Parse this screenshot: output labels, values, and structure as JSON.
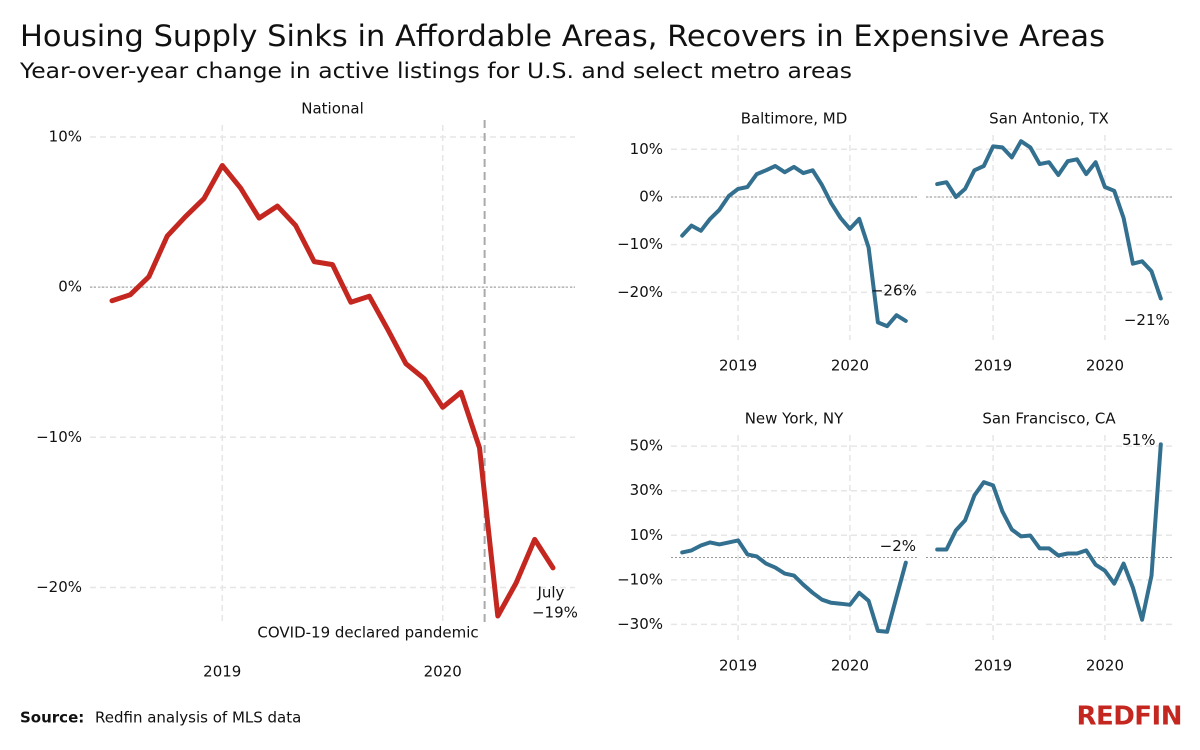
{
  "header": {
    "title": "Housing Supply Sinks in Affordable Areas, Recovers in Expensive Areas",
    "subtitle": "Year-over-year change in active listings for U.S. and select metro areas"
  },
  "footer": {
    "source_label": "Source:",
    "source": "Redfin analysis of MLS data",
    "logo": "REDFIN"
  },
  "chart_data": [
    {
      "type": "line",
      "title": "National",
      "color": "#c4271f",
      "x": [
        2018.5,
        2018.583,
        2018.667,
        2018.75,
        2018.833,
        2018.917,
        2019,
        2019.083,
        2019.167,
        2019.25,
        2019.333,
        2019.417,
        2019.5,
        2019.583,
        2019.667,
        2019.75,
        2019.833,
        2019.917,
        2020,
        2020.083,
        2020.167,
        2020.25,
        2020.333,
        2020.417,
        2020.5
      ],
      "values": [
        -0.9,
        -0.5,
        0.7,
        3.4,
        4.7,
        5.9,
        8.1,
        6.6,
        4.6,
        5.4,
        4.1,
        1.7,
        1.5,
        -1.0,
        -0.6,
        -2.8,
        -5.1,
        -6.1,
        -8.0,
        -7.0,
        -10.7,
        -21.9,
        -19.7,
        -16.8,
        -18.7
      ],
      "value_labels": [
        null,
        null,
        null,
        null,
        null,
        null,
        null,
        null,
        null,
        null,
        null,
        null,
        null,
        null,
        null,
        null,
        null,
        null,
        null,
        null,
        null,
        null,
        null,
        null,
        "−19%"
      ],
      "end_note": "July",
      "annotation": {
        "text": "COVID-19 declared pandemic",
        "x": 2020.19
      },
      "xlim": [
        2018.4,
        2020.6
      ],
      "xticks": [
        2019,
        2020
      ],
      "ylim": [
        -22.5,
        10.8
      ],
      "yticks": [
        {
          "value": 10,
          "label": "10%"
        },
        {
          "value": 0,
          "label": "0%"
        },
        {
          "value": -10,
          "label": "−10%"
        },
        {
          "value": -20,
          "label": "−20%"
        }
      ],
      "ytick_labels": true,
      "reference_line": 0,
      "grid": true
    },
    {
      "type": "line",
      "title": "Baltimore, MD",
      "color": "#33708f",
      "x": [
        2018.5,
        2018.583,
        2018.667,
        2018.75,
        2018.833,
        2018.917,
        2019,
        2019.083,
        2019.167,
        2019.25,
        2019.333,
        2019.417,
        2019.5,
        2019.583,
        2019.667,
        2019.75,
        2019.833,
        2019.917,
        2020,
        2020.083,
        2020.167,
        2020.25,
        2020.333,
        2020.417,
        2020.5
      ],
      "values": [
        -8.1,
        -6.0,
        -7.1,
        -4.6,
        -2.7,
        0.2,
        1.7,
        2.1,
        4.8,
        5.6,
        6.5,
        5.2,
        6.3,
        5.0,
        5.6,
        2.5,
        -1.3,
        -4.4,
        -6.7,
        -4.6,
        -10.6,
        -26.3,
        -27.1,
        -24.8,
        -26.0
      ],
      "value_labels": [
        null,
        null,
        null,
        null,
        null,
        null,
        null,
        null,
        null,
        null,
        null,
        null,
        null,
        null,
        null,
        null,
        null,
        null,
        null,
        null,
        null,
        null,
        null,
        null,
        "−26%"
      ],
      "xlim": [
        2018.4,
        2020.6
      ],
      "xticks": [
        2019,
        2020
      ],
      "ylim": [
        -30,
        13
      ],
      "yticks": [
        {
          "value": 10,
          "label": "10%"
        },
        {
          "value": 0,
          "label": "0%"
        },
        {
          "value": -10,
          "label": "−10%"
        },
        {
          "value": -20,
          "label": "−20%"
        }
      ],
      "ytick_labels": true,
      "reference_line": 0,
      "grid": true
    },
    {
      "type": "line",
      "title": "San Antonio, TX",
      "color": "#33708f",
      "x": [
        2018.5,
        2018.583,
        2018.667,
        2018.75,
        2018.833,
        2018.917,
        2019,
        2019.083,
        2019.167,
        2019.25,
        2019.333,
        2019.417,
        2019.5,
        2019.583,
        2019.667,
        2019.75,
        2019.833,
        2019.917,
        2020,
        2020.083,
        2020.167,
        2020.25,
        2020.333,
        2020.417,
        2020.5
      ],
      "values": [
        2.7,
        3.1,
        0,
        1.7,
        5.6,
        6.5,
        10.6,
        10.4,
        8.3,
        11.7,
        10.4,
        6.9,
        7.3,
        4.6,
        7.5,
        7.9,
        4.8,
        7.3,
        2.1,
        1.3,
        -4.4,
        -14.0,
        -13.5,
        -15.6,
        -21.3
      ],
      "value_labels": [
        null,
        null,
        null,
        null,
        null,
        null,
        null,
        null,
        null,
        null,
        null,
        null,
        null,
        null,
        null,
        null,
        null,
        null,
        null,
        null,
        null,
        null,
        null,
        null,
        "−21%"
      ],
      "xlim": [
        2018.4,
        2020.6
      ],
      "xticks": [
        2019,
        2020
      ],
      "ylim": [
        -30,
        13
      ],
      "yticks": [
        10,
        0,
        -10,
        -20
      ],
      "ytick_labels": false,
      "reference_line": 0,
      "grid": true
    },
    {
      "type": "line",
      "title": "New York, NY",
      "color": "#33708f",
      "x": [
        2018.5,
        2018.583,
        2018.667,
        2018.75,
        2018.833,
        2018.917,
        2019,
        2019.083,
        2019.167,
        2019.25,
        2019.333,
        2019.417,
        2019.5,
        2019.583,
        2019.667,
        2019.75,
        2019.833,
        2019.917,
        2020,
        2020.083,
        2020.167,
        2020.25,
        2020.333,
        2020.417,
        2020.5
      ],
      "values": [
        2.3,
        3.2,
        5.4,
        6.8,
        5.9,
        6.8,
        7.7,
        1.4,
        0.5,
        -2.7,
        -4.5,
        -7.2,
        -8.1,
        -12.2,
        -15.8,
        -18.9,
        -20.3,
        -20.7,
        -21.2,
        -15.8,
        -19.4,
        -32.9,
        -33.3,
        -17.6,
        -2.3
      ],
      "value_labels": [
        null,
        null,
        null,
        null,
        null,
        null,
        null,
        null,
        null,
        null,
        null,
        null,
        null,
        null,
        null,
        null,
        null,
        null,
        null,
        null,
        null,
        null,
        null,
        null,
        "−2%"
      ],
      "xlim": [
        2018.4,
        2020.6
      ],
      "xticks": [
        2019,
        2020
      ],
      "ylim": [
        -37,
        55
      ],
      "yticks": [
        {
          "value": 50,
          "label": "50%"
        },
        {
          "value": 30,
          "label": "30%"
        },
        {
          "value": 10,
          "label": "10%"
        },
        {
          "value": -10,
          "label": "−10%"
        },
        {
          "value": -30,
          "label": "−30%"
        }
      ],
      "ytick_labels": true,
      "reference_line": 0,
      "grid": true
    },
    {
      "type": "line",
      "title": "San Francisco, CA",
      "color": "#33708f",
      "x": [
        2018.5,
        2018.583,
        2018.667,
        2018.75,
        2018.833,
        2018.917,
        2019,
        2019.083,
        2019.167,
        2019.25,
        2019.333,
        2019.417,
        2019.5,
        2019.583,
        2019.667,
        2019.75,
        2019.833,
        2019.917,
        2020,
        2020.083,
        2020.167,
        2020.25,
        2020.333,
        2020.417,
        2020.5
      ],
      "values": [
        3.6,
        3.6,
        12.2,
        16.7,
        27.9,
        33.8,
        32.4,
        20.7,
        12.6,
        9.5,
        9.9,
        4.1,
        4.1,
        0.9,
        1.8,
        1.8,
        3.2,
        -3.2,
        -5.9,
        -11.7,
        -2.7,
        -13.5,
        -27.9,
        -8.1,
        50.8
      ],
      "value_labels": [
        null,
        null,
        null,
        null,
        null,
        null,
        null,
        null,
        null,
        null,
        null,
        null,
        null,
        null,
        null,
        null,
        null,
        null,
        null,
        null,
        null,
        null,
        null,
        null,
        "51%"
      ],
      "xlim": [
        2018.4,
        2020.6
      ],
      "xticks": [
        2019,
        2020
      ],
      "ylim": [
        -37,
        55
      ],
      "yticks": [
        50,
        30,
        10,
        -10,
        -30
      ],
      "ytick_labels": false,
      "reference_line": 0,
      "grid": true
    }
  ]
}
